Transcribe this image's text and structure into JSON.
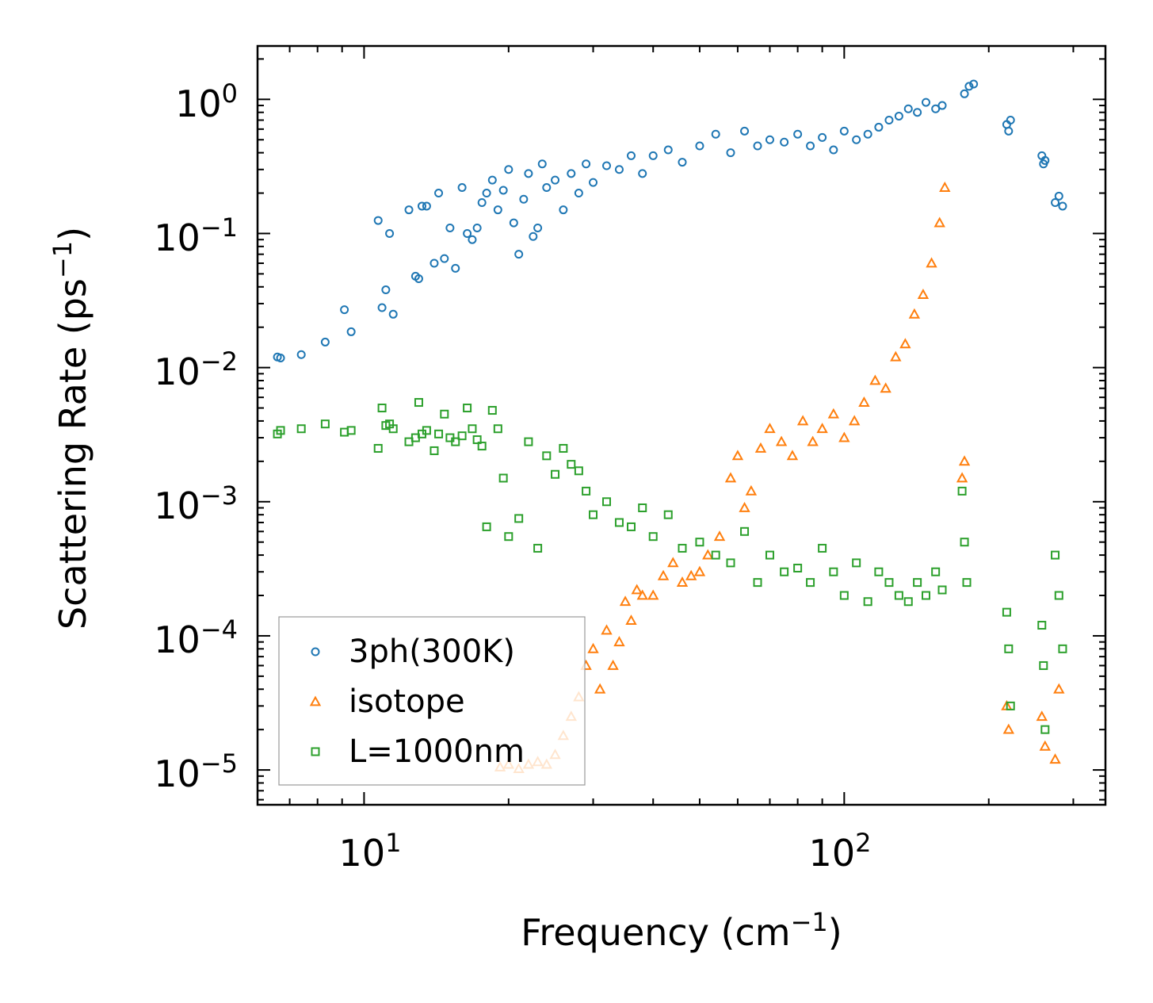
{
  "chart_data": {
    "type": "scatter",
    "xlabel": "Frequency (cm",
    "xlabel_exp": "−1",
    "xlabel_close": ")",
    "ylabel": "Scattering Rate (ps",
    "ylabel_exp": "−1",
    "ylabel_close": ")",
    "xscale": "log",
    "yscale": "log",
    "xlim": [
      6.0,
      350.0
    ],
    "ylim": [
      5.5e-06,
      2.5
    ],
    "x_ticks": [
      {
        "value": 10,
        "base": "10",
        "exp": "1"
      },
      {
        "value": 100,
        "base": "10",
        "exp": "2"
      }
    ],
    "y_ticks": [
      {
        "value": 1,
        "base": "10",
        "exp": "0"
      },
      {
        "value": 0.1,
        "base": "10",
        "exp": "−1"
      },
      {
        "value": 0.01,
        "base": "10",
        "exp": "−2"
      },
      {
        "value": 0.001,
        "base": "10",
        "exp": "−3"
      },
      {
        "value": 0.0001,
        "base": "10",
        "exp": "−4"
      },
      {
        "value": 1e-05,
        "base": "10",
        "exp": "−5"
      }
    ],
    "legend_position": "bottom-left",
    "series": [
      {
        "name": "3ph(300K)",
        "marker": "circle",
        "color": "#1f77b4",
        "x": [
          6.6,
          6.7,
          7.4,
          8.3,
          9.1,
          9.4,
          10.7,
          10.9,
          11.1,
          11.3,
          11.5,
          12.4,
          12.8,
          13.0,
          13.2,
          13.5,
          14.0,
          14.3,
          14.7,
          15.1,
          15.5,
          16.0,
          16.4,
          16.8,
          17.2,
          17.6,
          18.0,
          18.5,
          19.0,
          19.5,
          20.0,
          20.5,
          21.0,
          21.5,
          22.0,
          22.5,
          23.0,
          23.5,
          24.0,
          25.0,
          26.0,
          27.0,
          28.0,
          29.0,
          30.0,
          32.0,
          34.0,
          36.0,
          38.0,
          40.0,
          43.0,
          46.0,
          50.0,
          54.0,
          58.0,
          62.0,
          66.0,
          70.0,
          75.0,
          80.0,
          85.0,
          90.0,
          95.0,
          100.0,
          106.0,
          112.0,
          118.0,
          124.0,
          130.0,
          136.0,
          142.0,
          148.0,
          155.0,
          160.0,
          178.0,
          182.0,
          186.0,
          218.0,
          220.0,
          222.0,
          258.0,
          260.0,
          262.0,
          275.0,
          280.0,
          285.0
        ],
        "y": [
          0.012,
          0.0118,
          0.0125,
          0.0155,
          0.027,
          0.0185,
          0.125,
          0.028,
          0.038,
          0.1,
          0.025,
          0.15,
          0.048,
          0.046,
          0.16,
          0.16,
          0.06,
          0.2,
          0.065,
          0.11,
          0.055,
          0.22,
          0.1,
          0.09,
          0.11,
          0.17,
          0.2,
          0.25,
          0.15,
          0.21,
          0.3,
          0.12,
          0.07,
          0.18,
          0.28,
          0.095,
          0.11,
          0.33,
          0.22,
          0.25,
          0.15,
          0.28,
          0.2,
          0.33,
          0.24,
          0.32,
          0.3,
          0.38,
          0.28,
          0.38,
          0.42,
          0.34,
          0.45,
          0.55,
          0.4,
          0.58,
          0.45,
          0.5,
          0.48,
          0.55,
          0.45,
          0.52,
          0.42,
          0.58,
          0.5,
          0.55,
          0.62,
          0.7,
          0.75,
          0.85,
          0.8,
          0.95,
          0.85,
          0.9,
          1.1,
          1.25,
          1.3,
          0.65,
          0.58,
          0.7,
          0.38,
          0.33,
          0.35,
          0.17,
          0.19,
          0.16
        ]
      },
      {
        "name": "isotope",
        "marker": "triangle",
        "color": "#ff7f0e",
        "x": [
          19.2,
          20.0,
          21.0,
          22.0,
          23.0,
          24.0,
          25.0,
          26.0,
          27.0,
          28.0,
          29.0,
          30.0,
          31.0,
          32.0,
          33.0,
          34.0,
          35.0,
          36.0,
          37.0,
          38.0,
          40.0,
          42.0,
          44.0,
          46.0,
          48.0,
          50.0,
          52.0,
          55.0,
          58.0,
          60.0,
          62.0,
          64.0,
          67.0,
          70.0,
          74.0,
          78.0,
          82.0,
          86.0,
          90.0,
          95.0,
          100.0,
          105.0,
          110.0,
          116.0,
          122.0,
          128.0,
          134.0,
          140.0,
          146.0,
          152.0,
          158.0,
          162.0,
          176.0,
          178.0,
          218.0,
          220.0,
          258.0,
          262.0,
          275.0,
          280.0
        ],
        "y": [
          1.05e-05,
          1.1e-05,
          1.02e-05,
          1.1e-05,
          1.15e-05,
          1.1e-05,
          1.3e-05,
          1.8e-05,
          2.5e-05,
          3.5e-05,
          6e-05,
          8e-05,
          4e-05,
          0.00011,
          6e-05,
          9e-05,
          0.00018,
          0.00013,
          0.00022,
          0.0002,
          0.0002,
          0.00028,
          0.00035,
          0.00025,
          0.00028,
          0.0003,
          0.0004,
          0.00055,
          0.0015,
          0.0022,
          0.0009,
          0.0012,
          0.0025,
          0.0035,
          0.0028,
          0.0022,
          0.004,
          0.0028,
          0.0035,
          0.0045,
          0.003,
          0.004,
          0.0055,
          0.008,
          0.007,
          0.012,
          0.015,
          0.025,
          0.035,
          0.06,
          0.12,
          0.22,
          0.0015,
          0.002,
          3e-05,
          2e-05,
          2.5e-05,
          1.5e-05,
          1.2e-05,
          4e-05
        ]
      },
      {
        "name": "L=1000nm",
        "marker": "square",
        "color": "#2ca02c",
        "x": [
          6.6,
          6.7,
          7.4,
          8.3,
          9.1,
          9.4,
          10.7,
          10.9,
          11.1,
          11.3,
          11.5,
          12.4,
          12.8,
          13.0,
          13.2,
          13.5,
          14.0,
          14.3,
          14.7,
          15.1,
          15.5,
          16.0,
          16.4,
          16.8,
          17.2,
          17.6,
          18.0,
          18.5,
          19.0,
          19.5,
          20.0,
          21.0,
          22.0,
          23.0,
          24.0,
          25.0,
          26.0,
          27.0,
          28.0,
          29.0,
          30.0,
          32.0,
          34.0,
          36.0,
          38.0,
          40.0,
          43.0,
          46.0,
          50.0,
          54.0,
          58.0,
          62.0,
          66.0,
          70.0,
          75.0,
          80.0,
          85.0,
          90.0,
          95.0,
          100.0,
          106.0,
          112.0,
          118.0,
          124.0,
          130.0,
          136.0,
          142.0,
          148.0,
          155.0,
          160.0,
          176.0,
          178.0,
          180.0,
          218.0,
          220.0,
          222.0,
          258.0,
          260.0,
          262.0,
          275.0,
          280.0,
          285.0
        ],
        "y": [
          0.0032,
          0.0034,
          0.0035,
          0.0038,
          0.0033,
          0.0034,
          0.0025,
          0.005,
          0.0037,
          0.0038,
          0.0035,
          0.0028,
          0.003,
          0.0055,
          0.0032,
          0.0034,
          0.0024,
          0.0032,
          0.0045,
          0.003,
          0.0028,
          0.0031,
          0.005,
          0.0035,
          0.0029,
          0.0026,
          0.00065,
          0.0048,
          0.0035,
          0.0015,
          0.00055,
          0.00075,
          0.0028,
          0.00045,
          0.0022,
          0.0016,
          0.0025,
          0.0019,
          0.0017,
          0.0012,
          0.0008,
          0.001,
          0.0007,
          0.00065,
          0.0009,
          0.00055,
          0.0008,
          0.00045,
          0.0005,
          0.0004,
          0.00035,
          0.0006,
          0.00025,
          0.0004,
          0.0003,
          0.00032,
          0.00025,
          0.00045,
          0.0003,
          0.0002,
          0.00035,
          0.00018,
          0.0003,
          0.00025,
          0.0002,
          0.00018,
          0.00025,
          0.0002,
          0.0003,
          0.00022,
          0.0012,
          0.0005,
          0.00025,
          0.00015,
          8e-05,
          3e-05,
          0.00012,
          6e-05,
          2e-05,
          0.0004,
          0.0002,
          8e-05
        ]
      }
    ]
  }
}
